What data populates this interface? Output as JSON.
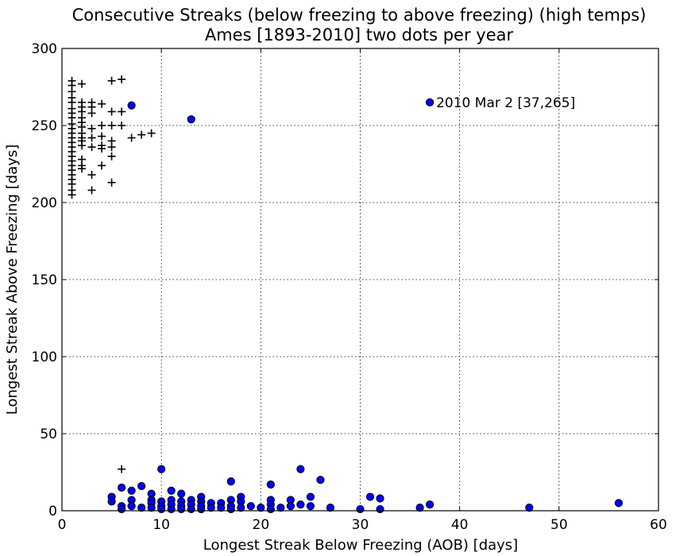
{
  "chart_data": {
    "type": "scatter",
    "title": "Consecutive Streaks (below freezing to above freezing) (high temps)",
    "subtitle": "Ames [1893-2010] two dots per year",
    "xlabel": "Longest Streak Below Freezing (AOB) [days]",
    "ylabel": "Longest Streak Above Freezing [days]",
    "xlim": [
      0,
      60
    ],
    "ylim": [
      0,
      300
    ],
    "xticks": [
      "0",
      "10",
      "20",
      "30",
      "40",
      "50",
      "60"
    ],
    "yticks": [
      "0",
      "50",
      "100",
      "150",
      "200",
      "250",
      "300"
    ],
    "grid": true,
    "annotation": {
      "text": "2010 Mar 2 [37,265]",
      "x": 37,
      "y": 265
    },
    "series": [
      {
        "marker": "circle",
        "color": "#0000ff",
        "points": [
          [
            7,
            263
          ],
          [
            13,
            254
          ],
          [
            37,
            265
          ],
          [
            5,
            9
          ],
          [
            5,
            6
          ],
          [
            6,
            15
          ],
          [
            6,
            3
          ],
          [
            6,
            1
          ],
          [
            7,
            13
          ],
          [
            7,
            7
          ],
          [
            7,
            3
          ],
          [
            8,
            16
          ],
          [
            8,
            2
          ],
          [
            9,
            11
          ],
          [
            9,
            7
          ],
          [
            9,
            5
          ],
          [
            9,
            2
          ],
          [
            10,
            27
          ],
          [
            10,
            6
          ],
          [
            10,
            3
          ],
          [
            10,
            1
          ],
          [
            11,
            13
          ],
          [
            11,
            7
          ],
          [
            11,
            4
          ],
          [
            11,
            1
          ],
          [
            12,
            11
          ],
          [
            12,
            6
          ],
          [
            12,
            3
          ],
          [
            12,
            1
          ],
          [
            13,
            7
          ],
          [
            13,
            4
          ],
          [
            13,
            1
          ],
          [
            14,
            9
          ],
          [
            14,
            6
          ],
          [
            14,
            3
          ],
          [
            14,
            1
          ],
          [
            15,
            5
          ],
          [
            15,
            2
          ],
          [
            16,
            5
          ],
          [
            16,
            2
          ],
          [
            17,
            19
          ],
          [
            17,
            7
          ],
          [
            17,
            3
          ],
          [
            17,
            1
          ],
          [
            18,
            9
          ],
          [
            18,
            6
          ],
          [
            18,
            2
          ],
          [
            19,
            3
          ],
          [
            20,
            2
          ],
          [
            21,
            17
          ],
          [
            21,
            7
          ],
          [
            21,
            4
          ],
          [
            21,
            1
          ],
          [
            22,
            2
          ],
          [
            23,
            7
          ],
          [
            23,
            3
          ],
          [
            24,
            27
          ],
          [
            24,
            4
          ],
          [
            25,
            9
          ],
          [
            25,
            3
          ],
          [
            26,
            20
          ],
          [
            27,
            2
          ],
          [
            30,
            1
          ],
          [
            31,
            9
          ],
          [
            32,
            8
          ],
          [
            32,
            1
          ],
          [
            36,
            2
          ],
          [
            37,
            4
          ],
          [
            47,
            2
          ],
          [
            56,
            5
          ]
        ]
      },
      {
        "marker": "plus",
        "color": "#000000",
        "points": [
          [
            1,
            279
          ],
          [
            1,
            276
          ],
          [
            1,
            272
          ],
          [
            1,
            268
          ],
          [
            1,
            265
          ],
          [
            1,
            261
          ],
          [
            1,
            258
          ],
          [
            1,
            255
          ],
          [
            1,
            251
          ],
          [
            1,
            248
          ],
          [
            1,
            245
          ],
          [
            1,
            242
          ],
          [
            1,
            239
          ],
          [
            1,
            236
          ],
          [
            1,
            233
          ],
          [
            1,
            230
          ],
          [
            1,
            227
          ],
          [
            1,
            224
          ],
          [
            1,
            221
          ],
          [
            1,
            218
          ],
          [
            1,
            215
          ],
          [
            1,
            212
          ],
          [
            1,
            208
          ],
          [
            1,
            205
          ],
          [
            2,
            277
          ],
          [
            2,
            265
          ],
          [
            2,
            262
          ],
          [
            2,
            259
          ],
          [
            2,
            255
          ],
          [
            2,
            252
          ],
          [
            2,
            249
          ],
          [
            2,
            245
          ],
          [
            2,
            242
          ],
          [
            2,
            240
          ],
          [
            2,
            237
          ],
          [
            2,
            228
          ],
          [
            2,
            224
          ],
          [
            2,
            222
          ],
          [
            3,
            265
          ],
          [
            3,
            262
          ],
          [
            3,
            258
          ],
          [
            3,
            248
          ],
          [
            3,
            242
          ],
          [
            3,
            236
          ],
          [
            3,
            218
          ],
          [
            3,
            208
          ],
          [
            4,
            264
          ],
          [
            4,
            250
          ],
          [
            4,
            243
          ],
          [
            4,
            237
          ],
          [
            4,
            235
          ],
          [
            4,
            224
          ],
          [
            5,
            279
          ],
          [
            5,
            259
          ],
          [
            5,
            250
          ],
          [
            5,
            240
          ],
          [
            5,
            236
          ],
          [
            5,
            230
          ],
          [
            5,
            213
          ],
          [
            6,
            280
          ],
          [
            6,
            259
          ],
          [
            6,
            250
          ],
          [
            7,
            242
          ],
          [
            8,
            244
          ],
          [
            9,
            245
          ],
          [
            6,
            27
          ]
        ]
      }
    ]
  }
}
